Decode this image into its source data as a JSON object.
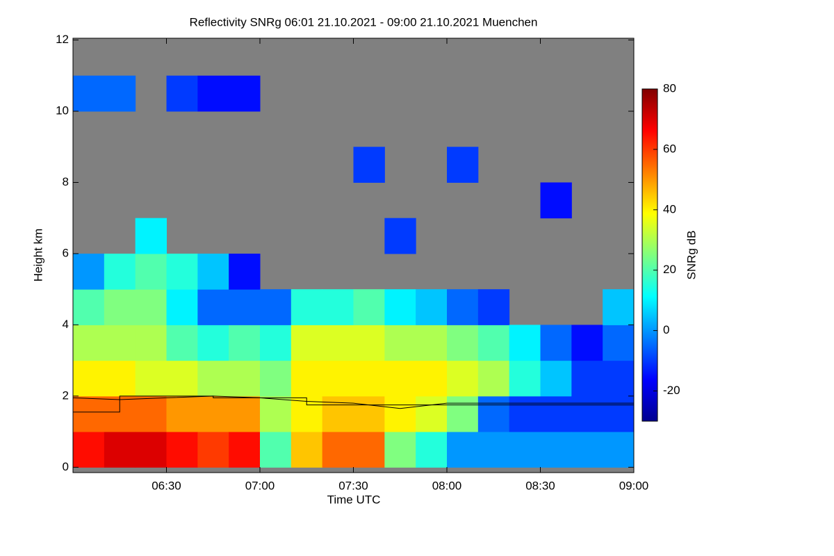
{
  "chart_data": {
    "type": "heatmap",
    "title": "Reflectivity SNRg   06:01 21.10.2021 - 09:00 21.10.2021 Muenchen",
    "x_label": "Time UTC",
    "y_label": "Height km",
    "colorbar_label": "SNRg dB",
    "background_color": "#808080",
    "xlim": [
      6.0,
      9.0
    ],
    "xticks": [
      {
        "value": 6.5,
        "label": "06:30"
      },
      {
        "value": 7.0,
        "label": "07:00"
      },
      {
        "value": 7.5,
        "label": "07:30"
      },
      {
        "value": 8.0,
        "label": "08:00"
      },
      {
        "value": 8.5,
        "label": "08:30"
      },
      {
        "value": 9.0,
        "label": "09:00"
      }
    ],
    "ylim": [
      -0.15,
      12.05
    ],
    "yticks": [
      0,
      2,
      4,
      6,
      8,
      10,
      12
    ],
    "zlim": [
      -30,
      80
    ],
    "zticks": [
      -20,
      0,
      20,
      40,
      60,
      80
    ],
    "x_edges": [
      6.0,
      6.1667,
      6.3333,
      6.5,
      6.6667,
      6.8333,
      7.0,
      7.1667,
      7.3333,
      7.5,
      7.6667,
      7.8333,
      8.0,
      8.1667,
      8.3333,
      8.5,
      8.6667,
      8.8333,
      9.0
    ],
    "y_edges": [
      0,
      1,
      2,
      3,
      4,
      5,
      6,
      7,
      8,
      9,
      10,
      11,
      12
    ],
    "z": [
      [
        65,
        55,
        40,
        30,
        20,
        0,
        null,
        null,
        null,
        null,
        -5,
        null
      ],
      [
        70,
        55,
        40,
        30,
        25,
        15,
        null,
        null,
        null,
        null,
        -5,
        null
      ],
      [
        70,
        55,
        35,
        30,
        25,
        20,
        10,
        null,
        null,
        null,
        null,
        null
      ],
      [
        65,
        50,
        35,
        20,
        10,
        15,
        null,
        null,
        null,
        null,
        -10,
        null
      ],
      [
        60,
        50,
        30,
        15,
        -5,
        5,
        null,
        null,
        null,
        null,
        -15,
        null
      ],
      [
        65,
        50,
        30,
        20,
        -5,
        -15,
        null,
        null,
        null,
        null,
        -15,
        null
      ],
      [
        20,
        30,
        25,
        15,
        -5,
        null,
        null,
        null,
        null,
        null,
        null,
        null
      ],
      [
        45,
        40,
        40,
        35,
        15,
        null,
        null,
        null,
        null,
        null,
        null,
        null
      ],
      [
        55,
        45,
        40,
        35,
        15,
        null,
        null,
        null,
        null,
        null,
        null,
        null
      ],
      [
        55,
        45,
        40,
        35,
        20,
        null,
        null,
        null,
        -10,
        null,
        null,
        null
      ],
      [
        25,
        40,
        40,
        30,
        10,
        null,
        -10,
        null,
        null,
        null,
        null,
        null
      ],
      [
        15,
        35,
        40,
        30,
        5,
        null,
        null,
        null,
        null,
        null,
        null,
        null
      ],
      [
        0,
        25,
        35,
        25,
        -5,
        null,
        null,
        null,
        -10,
        null,
        null,
        null
      ],
      [
        0,
        -5,
        30,
        20,
        -10,
        null,
        null,
        null,
        null,
        null,
        null,
        null
      ],
      [
        0,
        -10,
        15,
        10,
        null,
        null,
        null,
        null,
        null,
        null,
        null,
        null
      ],
      [
        0,
        -10,
        5,
        -5,
        null,
        null,
        null,
        -15,
        null,
        null,
        null,
        null
      ],
      [
        0,
        -10,
        -10,
        -15,
        null,
        null,
        null,
        null,
        null,
        null,
        null,
        null
      ],
      [
        0,
        -10,
        -10,
        -5,
        5,
        null,
        null,
        null,
        null,
        null,
        null,
        null
      ]
    ],
    "lines": [
      {
        "color": "#000000",
        "x": [
          6.0,
          6.25,
          6.25,
          6.75,
          6.75,
          7.25,
          7.25,
          9.0
        ],
        "values": [
          1.55,
          1.55,
          2.0,
          2.0,
          1.95,
          1.95,
          1.75,
          1.75
        ]
      },
      {
        "color": "#000000",
        "x": [
          6.0,
          6.25,
          6.5,
          6.75,
          7.0,
          7.25,
          7.5,
          7.75,
          8.0,
          8.25,
          8.5,
          8.75,
          9.0
        ],
        "values": [
          1.95,
          1.9,
          1.95,
          2.0,
          1.95,
          1.85,
          1.8,
          1.65,
          1.8,
          1.8,
          1.8,
          1.8,
          1.8
        ]
      }
    ]
  }
}
